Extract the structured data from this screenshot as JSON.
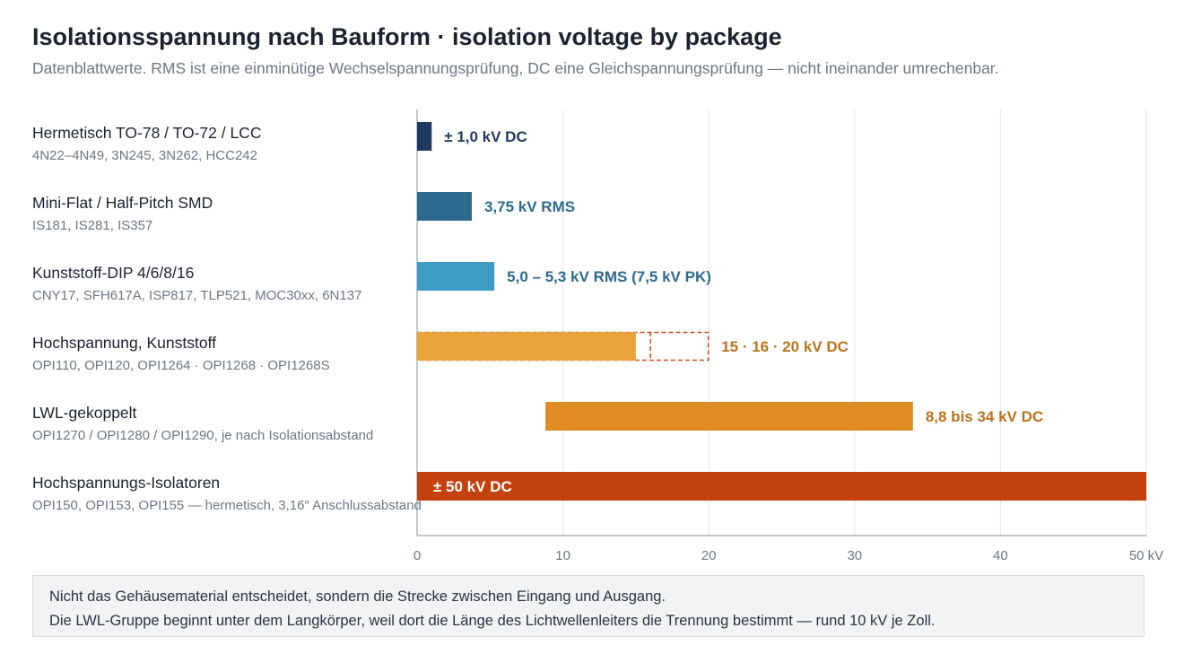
{
  "title": "Isolationsspannung nach Bauform · isolation voltage by package",
  "subtitle": "Datenblattwerte. RMS ist eine einminütige Wechselspannungsprüfung, DC eine Gleichspannungsprüfung — nicht ineinander umrechenbar.",
  "chart_data": {
    "type": "bar",
    "orientation": "horizontal",
    "xlim": [
      0,
      50
    ],
    "xunit": "kV",
    "xticks": [
      "0",
      "10",
      "20",
      "30",
      "40",
      "50 kV"
    ],
    "grid": true,
    "categories": [
      {
        "label": "Hermetisch TO-78 / TO-72 / LCC",
        "sub": "4N22–4N49, 3N245, 3N262, HCC242",
        "start": 0,
        "end": 1.0,
        "color": "#1f3a5f",
        "annotation": "± 1,0 kV DC",
        "annotation_color": "#1f3a5f",
        "annotation_inside": false
      },
      {
        "label": "Mini-Flat / Half-Pitch SMD",
        "sub": "IS181, IS281, IS357",
        "start": 0,
        "end": 3.75,
        "color": "#2e6a8e",
        "annotation": "3,75 kV RMS",
        "annotation_color": "#2e6a8e",
        "annotation_inside": false
      },
      {
        "label": "Kunststoff-DIP 4/6/8/16",
        "sub": "CNY17, SFH617A, ISP817, TLP521, MOC30xx, 6N137",
        "start": 0,
        "end": 5.3,
        "color": "#3e9cc3",
        "annotation": "5,0 – 5,3 kV RMS (7,5 kV PK)",
        "annotation_color": "#2e6a8e",
        "annotation_inside": false
      },
      {
        "label": "Hochspannung, Kunststoff",
        "sub": "OPI110, OPI120, OPI1264 · OPI1268 · OPI1268S",
        "start": 0,
        "end": 15,
        "dashed_ends": [
          16,
          20
        ],
        "color": "#e8a33c",
        "dash_color": "#c7501a",
        "annotation": "15 · 16 · 20 kV DC",
        "annotation_color": "#b8741e",
        "annotation_inside": false
      },
      {
        "label": "LWL-gekoppelt",
        "sub": "OPI1270 / OPI1280 / OPI1290, je nach Isolationsabstand",
        "start": 8.8,
        "end": 34,
        "color": "#e08c22",
        "annotation": "8,8 bis 34 kV DC",
        "annotation_color": "#b8741e",
        "annotation_inside": false
      },
      {
        "label": "Hochspannungs-Isolatoren",
        "sub": "OPI150, OPI153, OPI155 — hermetisch, 3,16″ Anschlussabstand",
        "start": 0,
        "end": 50,
        "color": "#c4420e",
        "annotation": "± 50 kV DC",
        "annotation_color": "#ffffff",
        "annotation_inside": true
      }
    ]
  },
  "note": {
    "line1": "Nicht das Gehäusematerial entscheidet, sondern die Strecke zwischen Eingang und Ausgang.",
    "line2": "Die LWL-Gruppe beginnt unter dem Langkörper, weil dort die Länge des Lichtwellenleiters die Trennung bestimmt — rund 10 kV je Zoll."
  }
}
